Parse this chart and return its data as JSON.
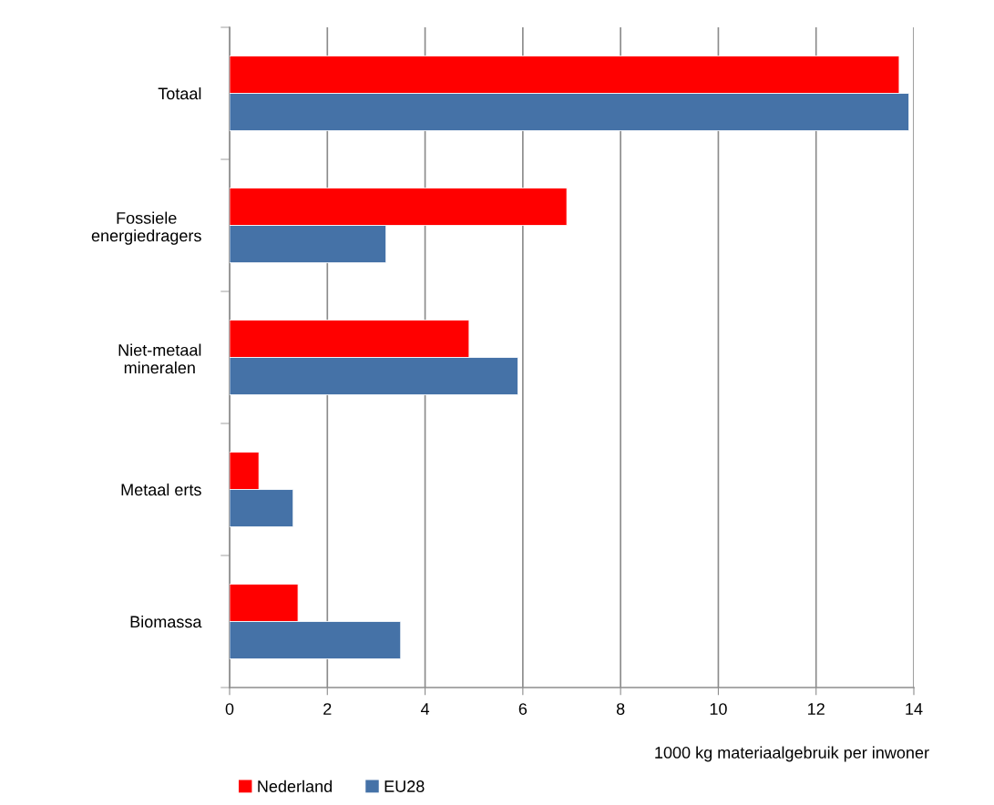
{
  "chart_data": {
    "type": "bar",
    "orientation": "horizontal",
    "categories": [
      "Totaal",
      "Fossiele\nenergiedragers",
      "Niet-metaal\nmineralen",
      "Metaal erts",
      "Biomassa"
    ],
    "series": [
      {
        "name": "Nederland",
        "color": "#ff0000",
        "values": [
          13.7,
          6.9,
          4.9,
          0.6,
          1.4
        ]
      },
      {
        "name": "EU28",
        "color": "#4572a7",
        "values": [
          13.9,
          3.2,
          5.9,
          1.3,
          3.5
        ]
      }
    ],
    "xlabel": "1000 kg materiaalgebruik per inwoner",
    "xlim": [
      0,
      14
    ],
    "xticks": [
      0,
      2,
      4,
      6,
      8,
      10,
      12,
      14
    ],
    "grid": "x",
    "legend": "bottom"
  }
}
